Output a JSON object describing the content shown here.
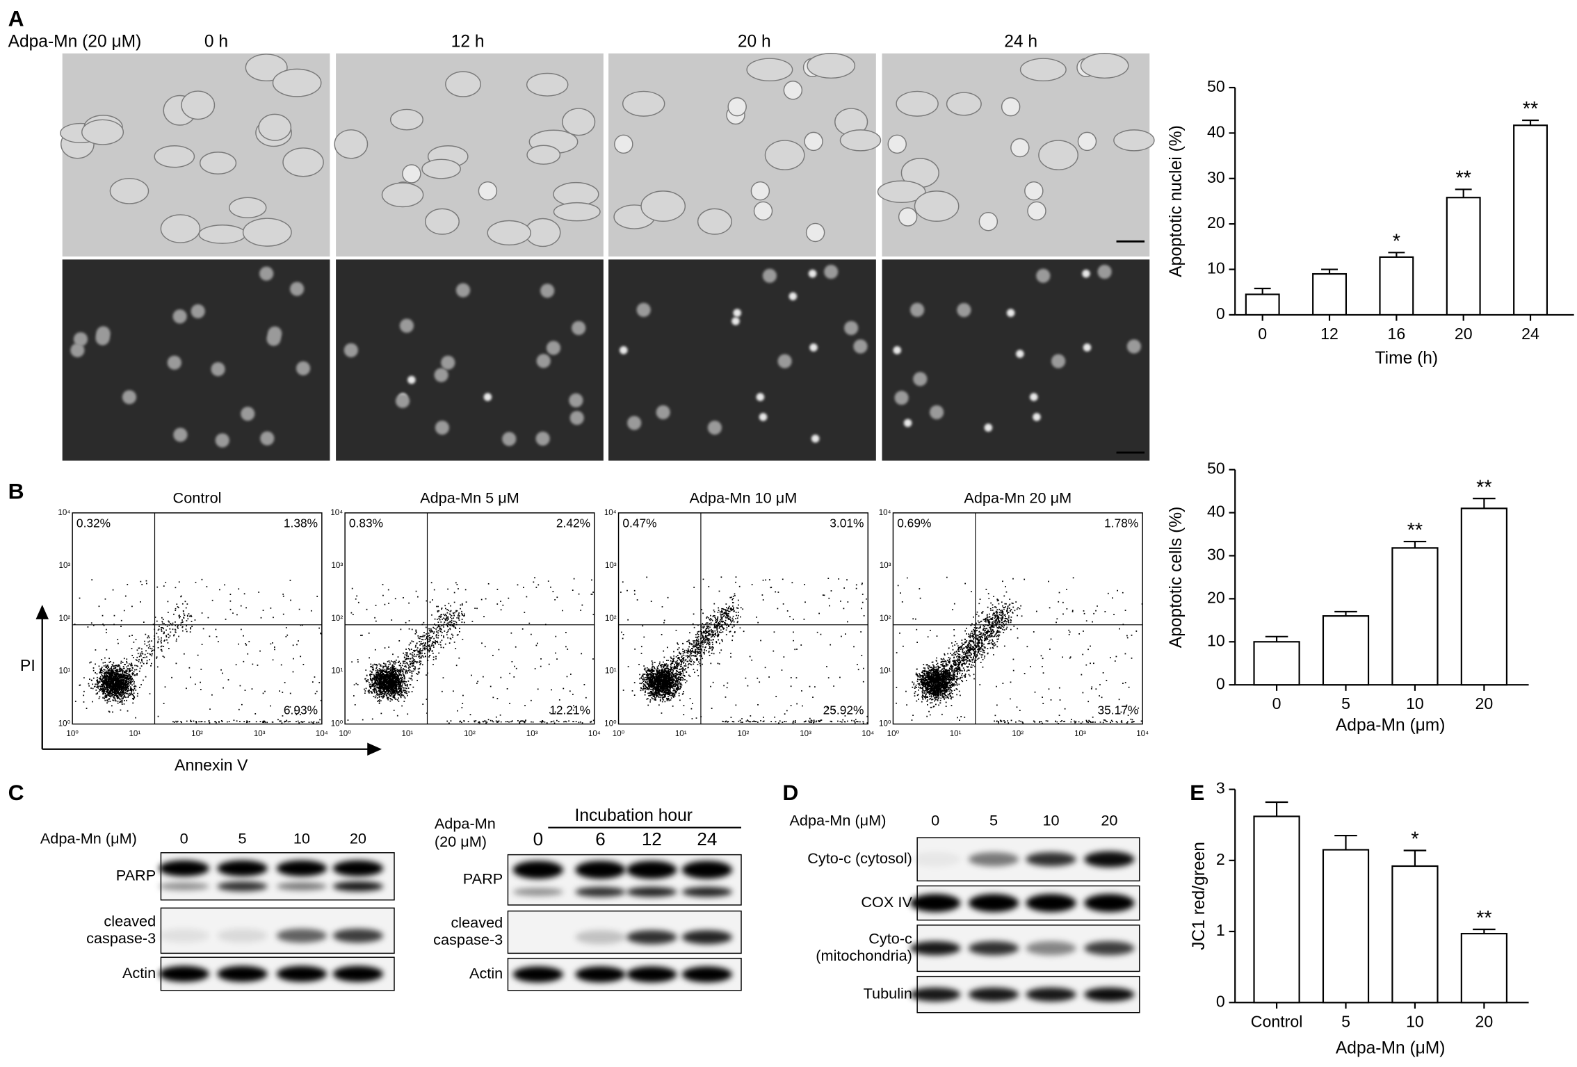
{
  "panel_labels": [
    "A",
    "B",
    "C",
    "D",
    "E"
  ],
  "microscopy": {
    "treatment": "Adpa-Mn (20 μM)",
    "timepoints": [
      "0 h",
      "12 h",
      "20 h",
      "24 h"
    ]
  },
  "flow": {
    "plots": [
      {
        "title": "Control",
        "upper_left": "0.32%",
        "upper_right": "1.38%",
        "lower_right": "6.93%"
      },
      {
        "title": "Adpa-Mn 5 μM",
        "upper_left": "0.83%",
        "upper_right": "2.42%",
        "lower_right": "12.21%"
      },
      {
        "title": "Adpa-Mn 10 μM",
        "upper_left": "0.47%",
        "upper_right": "3.01%",
        "lower_right": "25.92%"
      },
      {
        "title": "Adpa-Mn 20 μM",
        "upper_left": "0.69%",
        "upper_right": "1.78%",
        "lower_right": "35.17%"
      }
    ],
    "axis_ticks": [
      "10⁰",
      "10¹",
      "10²",
      "10³",
      "10⁴"
    ],
    "ylabel": "PI",
    "xlabel": "Annexin V"
  },
  "blot_C_dose": {
    "treatment": [
      "Adpa-Mn (μM)"
    ],
    "lanes": [
      "0",
      "5",
      "10",
      "20"
    ],
    "rows": [
      [
        "PARP"
      ],
      [
        "cleaved",
        "caspase-3"
      ],
      [
        "Actin"
      ]
    ]
  },
  "blot_C_time": {
    "treatment": [
      "Adpa-Mn",
      "(20 μM)"
    ],
    "header": "Incubation hour",
    "lanes": [
      "0",
      "6",
      "12",
      "24"
    ],
    "rows": [
      [
        "PARP"
      ],
      [
        "cleaved",
        "caspase-3"
      ],
      [
        "Actin"
      ]
    ]
  },
  "blot_D": {
    "treatment": [
      "Adpa-Mn (μM)"
    ],
    "lanes": [
      "0",
      "5",
      "10",
      "20"
    ],
    "rows": [
      [
        "Cyto-c (cytosol)"
      ],
      [
        "COX IV"
      ],
      [
        "Cyto-c",
        "(mitochondria)"
      ],
      [
        "Tubulin"
      ]
    ]
  },
  "chart_data": [
    {
      "type": "bar",
      "categories": [
        "0",
        "12",
        "16",
        "20",
        "24"
      ],
      "values": [
        4.5,
        9,
        12.7,
        25.8,
        41.7
      ],
      "errors": [
        1.3,
        1,
        1,
        1.8,
        1.1
      ],
      "significance": [
        null,
        null,
        "*",
        "**",
        "**"
      ],
      "ylim": [
        0,
        50
      ],
      "yticks": [
        0,
        10,
        20,
        30,
        40,
        50
      ],
      "ylabel": "Apoptotic nuclei (%)",
      "xlabel": "Time (h)",
      "color": "#ffffff"
    },
    {
      "type": "bar",
      "categories": [
        "0",
        "5",
        "10",
        "20"
      ],
      "values": [
        10,
        16,
        31.8,
        41
      ],
      "errors": [
        1.2,
        1,
        1.5,
        2.3
      ],
      "significance": [
        null,
        null,
        "**",
        "**"
      ],
      "ylim": [
        0,
        50
      ],
      "yticks": [
        0,
        10,
        20,
        30,
        40,
        50
      ],
      "ylabel": "Apoptotic cells (%)",
      "xlabel": "Adpa-Mn (μm)",
      "color": "#ffffff"
    },
    {
      "type": "bar",
      "categories": [
        "Control",
        "5",
        "10",
        "20"
      ],
      "values": [
        2.62,
        2.15,
        1.92,
        0.97
      ],
      "errors": [
        0.2,
        0.2,
        0.22,
        0.06
      ],
      "significance": [
        null,
        null,
        "*",
        "**"
      ],
      "ylim": [
        0,
        3
      ],
      "yticks": [
        0,
        1,
        2,
        3
      ],
      "ylabel": "JC1 red/green",
      "xlabel": "Adpa-Mn (μM)",
      "color": "#ffffff"
    }
  ]
}
